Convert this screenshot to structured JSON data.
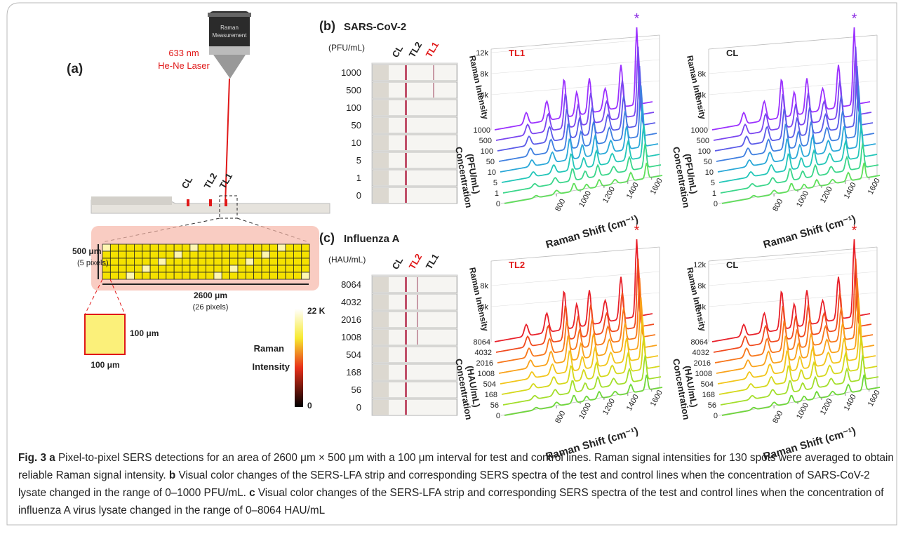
{
  "panel_a": {
    "label": "(a)",
    "laser": [
      "633 nm",
      "He-Ne Laser"
    ],
    "objective": [
      "Raman",
      "Measurement"
    ],
    "lines": [
      "CL",
      "TL2",
      "TL1"
    ],
    "height": "500 μm",
    "height_pixels": "(5 pixels)",
    "width": "2600 μm",
    "width_pixels": "(26 pixels)",
    "pixel_size": [
      "100 μm",
      "100 μm"
    ],
    "colorbar": {
      "title": [
        "Raman",
        "Intensity"
      ],
      "max": "22 K",
      "min": "0"
    }
  },
  "panel_b": {
    "label": "(b)",
    "title": "SARS-CoV-2",
    "unit": "(PFU/mL)",
    "concentrations": [
      "1000",
      "500",
      "100",
      "50",
      "10",
      "5",
      "1",
      "0"
    ],
    "strip_lines": [
      "CL",
      "TL2",
      "TL1"
    ],
    "concentration_axis": [
      "Concentration",
      "(PFU/mL)"
    ],
    "plots": [
      {
        "line": "TL1",
        "yticks": [
          "12k",
          "8k",
          "4k"
        ],
        "peak_marker": "*"
      },
      {
        "line": "CL",
        "yticks": [
          "8k",
          "4k"
        ],
        "peak_marker": "*"
      }
    ]
  },
  "panel_c": {
    "label": "(c)",
    "title": "Influenza A",
    "unit": "(HAU/mL)",
    "concentrations": [
      "8064",
      "4032",
      "2016",
      "1008",
      "504",
      "168",
      "56",
      "0"
    ],
    "strip_lines": [
      "CL",
      "TL2",
      "TL1"
    ],
    "concentration_axis": [
      "Concentration",
      "(HAU/mL)"
    ],
    "plots": [
      {
        "line": "TL2",
        "yticks": [
          "8k",
          "4k"
        ],
        "peak_marker": "*"
      },
      {
        "line": "CL",
        "yticks": [
          "12k",
          "8k",
          "4k"
        ],
        "peak_marker": "*"
      }
    ]
  },
  "raman_axis": {
    "y_label": "Raman Intensity",
    "x_label": "Raman Shift (cm⁻¹)",
    "x_ticks": [
      "800",
      "1000",
      "1200",
      "1400",
      "1600"
    ]
  },
  "caption": {
    "label": "Fig. 3",
    "items": [
      {
        "letter": "a",
        "text": "Pixel-to-pixel SERS detections for an area of 2600 μm × 500 μm with a 100 μm interval for test and control lines. Raman signal intensities for 130 spots were averaged to obtain reliable Raman signal intensity."
      },
      {
        "letter": "b",
        "text": "Visual color changes of the SERS-LFA strip and corresponding SERS spectra of the test and control lines when the concentration of SARS-CoV-2 lysate changed in the range of 0–1000 PFU/mL."
      },
      {
        "letter": "c",
        "text": "Visual color changes of the SERS-LFA strip and corresponding SERS spectra of the test and control lines when the concentration of influenza A virus lysate changed in the range of 0–8064 HAU/mL"
      }
    ]
  }
}
